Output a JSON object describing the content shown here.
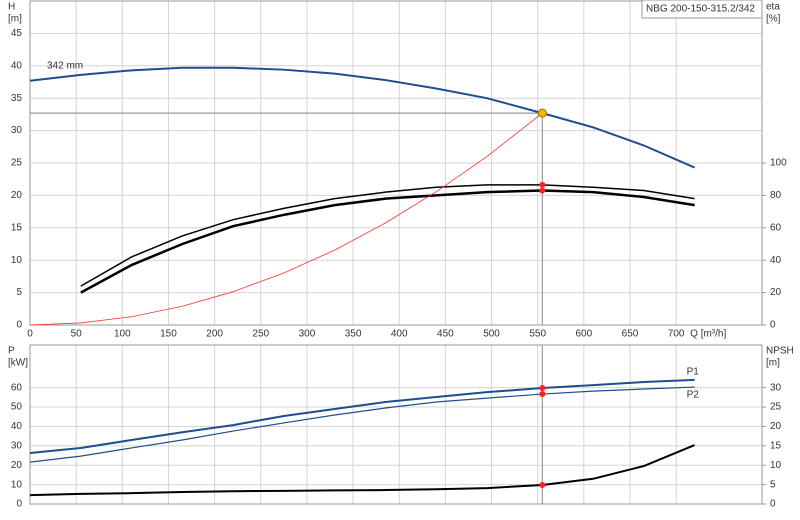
{
  "chart_data": [
    {
      "type": "line",
      "ylabel": "H",
      "yunit": "[m]",
      "y2label": "eta",
      "y2unit": "[%]",
      "xlabel": "Q [m³/h]",
      "title": "NBG 200-150-315.2/342",
      "grid": true,
      "duty_x": 555,
      "x": [
        0,
        55,
        110,
        165,
        220,
        275,
        330,
        385,
        440,
        495,
        555,
        610,
        665,
        720
      ],
      "xlim": [
        0,
        793
      ],
      "xticks": [
        0,
        50,
        100,
        150,
        200,
        250,
        300,
        350,
        400,
        450,
        500,
        550,
        600,
        650,
        700
      ],
      "ylim": [
        0,
        50
      ],
      "yticks": [
        0,
        5,
        10,
        15,
        20,
        25,
        30,
        35,
        40,
        45
      ],
      "y2lim": [
        0,
        200
      ],
      "y2ticks": [
        0,
        20,
        40,
        60,
        80,
        100
      ],
      "series": [
        {
          "name": "342 mm",
          "color": "#1f4e8c",
          "width": 2,
          "marker_color": "#f5b800",
          "values": [
            37.7,
            38.6,
            39.3,
            39.7,
            39.7,
            39.4,
            38.8,
            37.8,
            36.5,
            35,
            32.7,
            30.5,
            27.7,
            24.3
          ]
        },
        {
          "color": "#000000",
          "width": 1.5,
          "axis": "y2",
          "marker_color": "#ff2020",
          "values": [
            null,
            24,
            42,
            55,
            65,
            72,
            78,
            82,
            85,
            86.5,
            86.5,
            85,
            83,
            78
          ]
        },
        {
          "color": "#000000",
          "width": 2.5,
          "axis": "y2",
          "marker_color": "#ff2020",
          "values": [
            null,
            20,
            37,
            50,
            61,
            68,
            74,
            78,
            80,
            82,
            83,
            82,
            79,
            74
          ]
        },
        {
          "color": "#ff3030",
          "width": 0.8,
          "values": [
            0,
            0.32,
            1.28,
            2.89,
            5.14,
            8.03,
            11.56,
            15.74,
            20.55,
            26.0,
            32.7,
            null,
            null,
            null
          ]
        }
      ]
    },
    {
      "type": "line",
      "ylabel": "P",
      "yunit": "[kW]",
      "y2label": "NPSH",
      "y2unit": "[m]",
      "grid": true,
      "duty_x": 555,
      "x": [
        0,
        55,
        110,
        165,
        220,
        275,
        330,
        385,
        440,
        495,
        555,
        610,
        665,
        720
      ],
      "xlim": [
        0,
        793
      ],
      "ylim": [
        0,
        82
      ],
      "yticks": [
        0,
        10,
        20,
        30,
        40,
        50,
        60
      ],
      "y2lim": [
        0,
        41
      ],
      "y2ticks": [
        0,
        5,
        10,
        15,
        20,
        25,
        30
      ],
      "series": [
        {
          "name": "P1",
          "color": "#1f4e8c",
          "width": 2,
          "marker_color": "#ff2020",
          "values": [
            26.3,
            28.9,
            33,
            37,
            40.7,
            45.4,
            49,
            52.6,
            55.2,
            57.7,
            59.8,
            61.3,
            62.9,
            64
          ]
        },
        {
          "name": "P2",
          "color": "#1f4e8c",
          "width": 1.2,
          "marker_color": "#ff2020",
          "values": [
            21.6,
            24.7,
            28.9,
            33,
            37.6,
            41.8,
            45.9,
            49.5,
            52.6,
            54.6,
            56.7,
            58.2,
            59.3,
            60.3
          ]
        },
        {
          "color": "#000000",
          "width": 2,
          "axis": "y2",
          "marker_color": "#ff2020",
          "values": [
            2.3,
            2.6,
            2.8,
            3.1,
            3.3,
            3.4,
            3.5,
            3.6,
            3.8,
            4.1,
            4.9,
            6.5,
            9.8,
            15.2
          ]
        }
      ]
    }
  ]
}
